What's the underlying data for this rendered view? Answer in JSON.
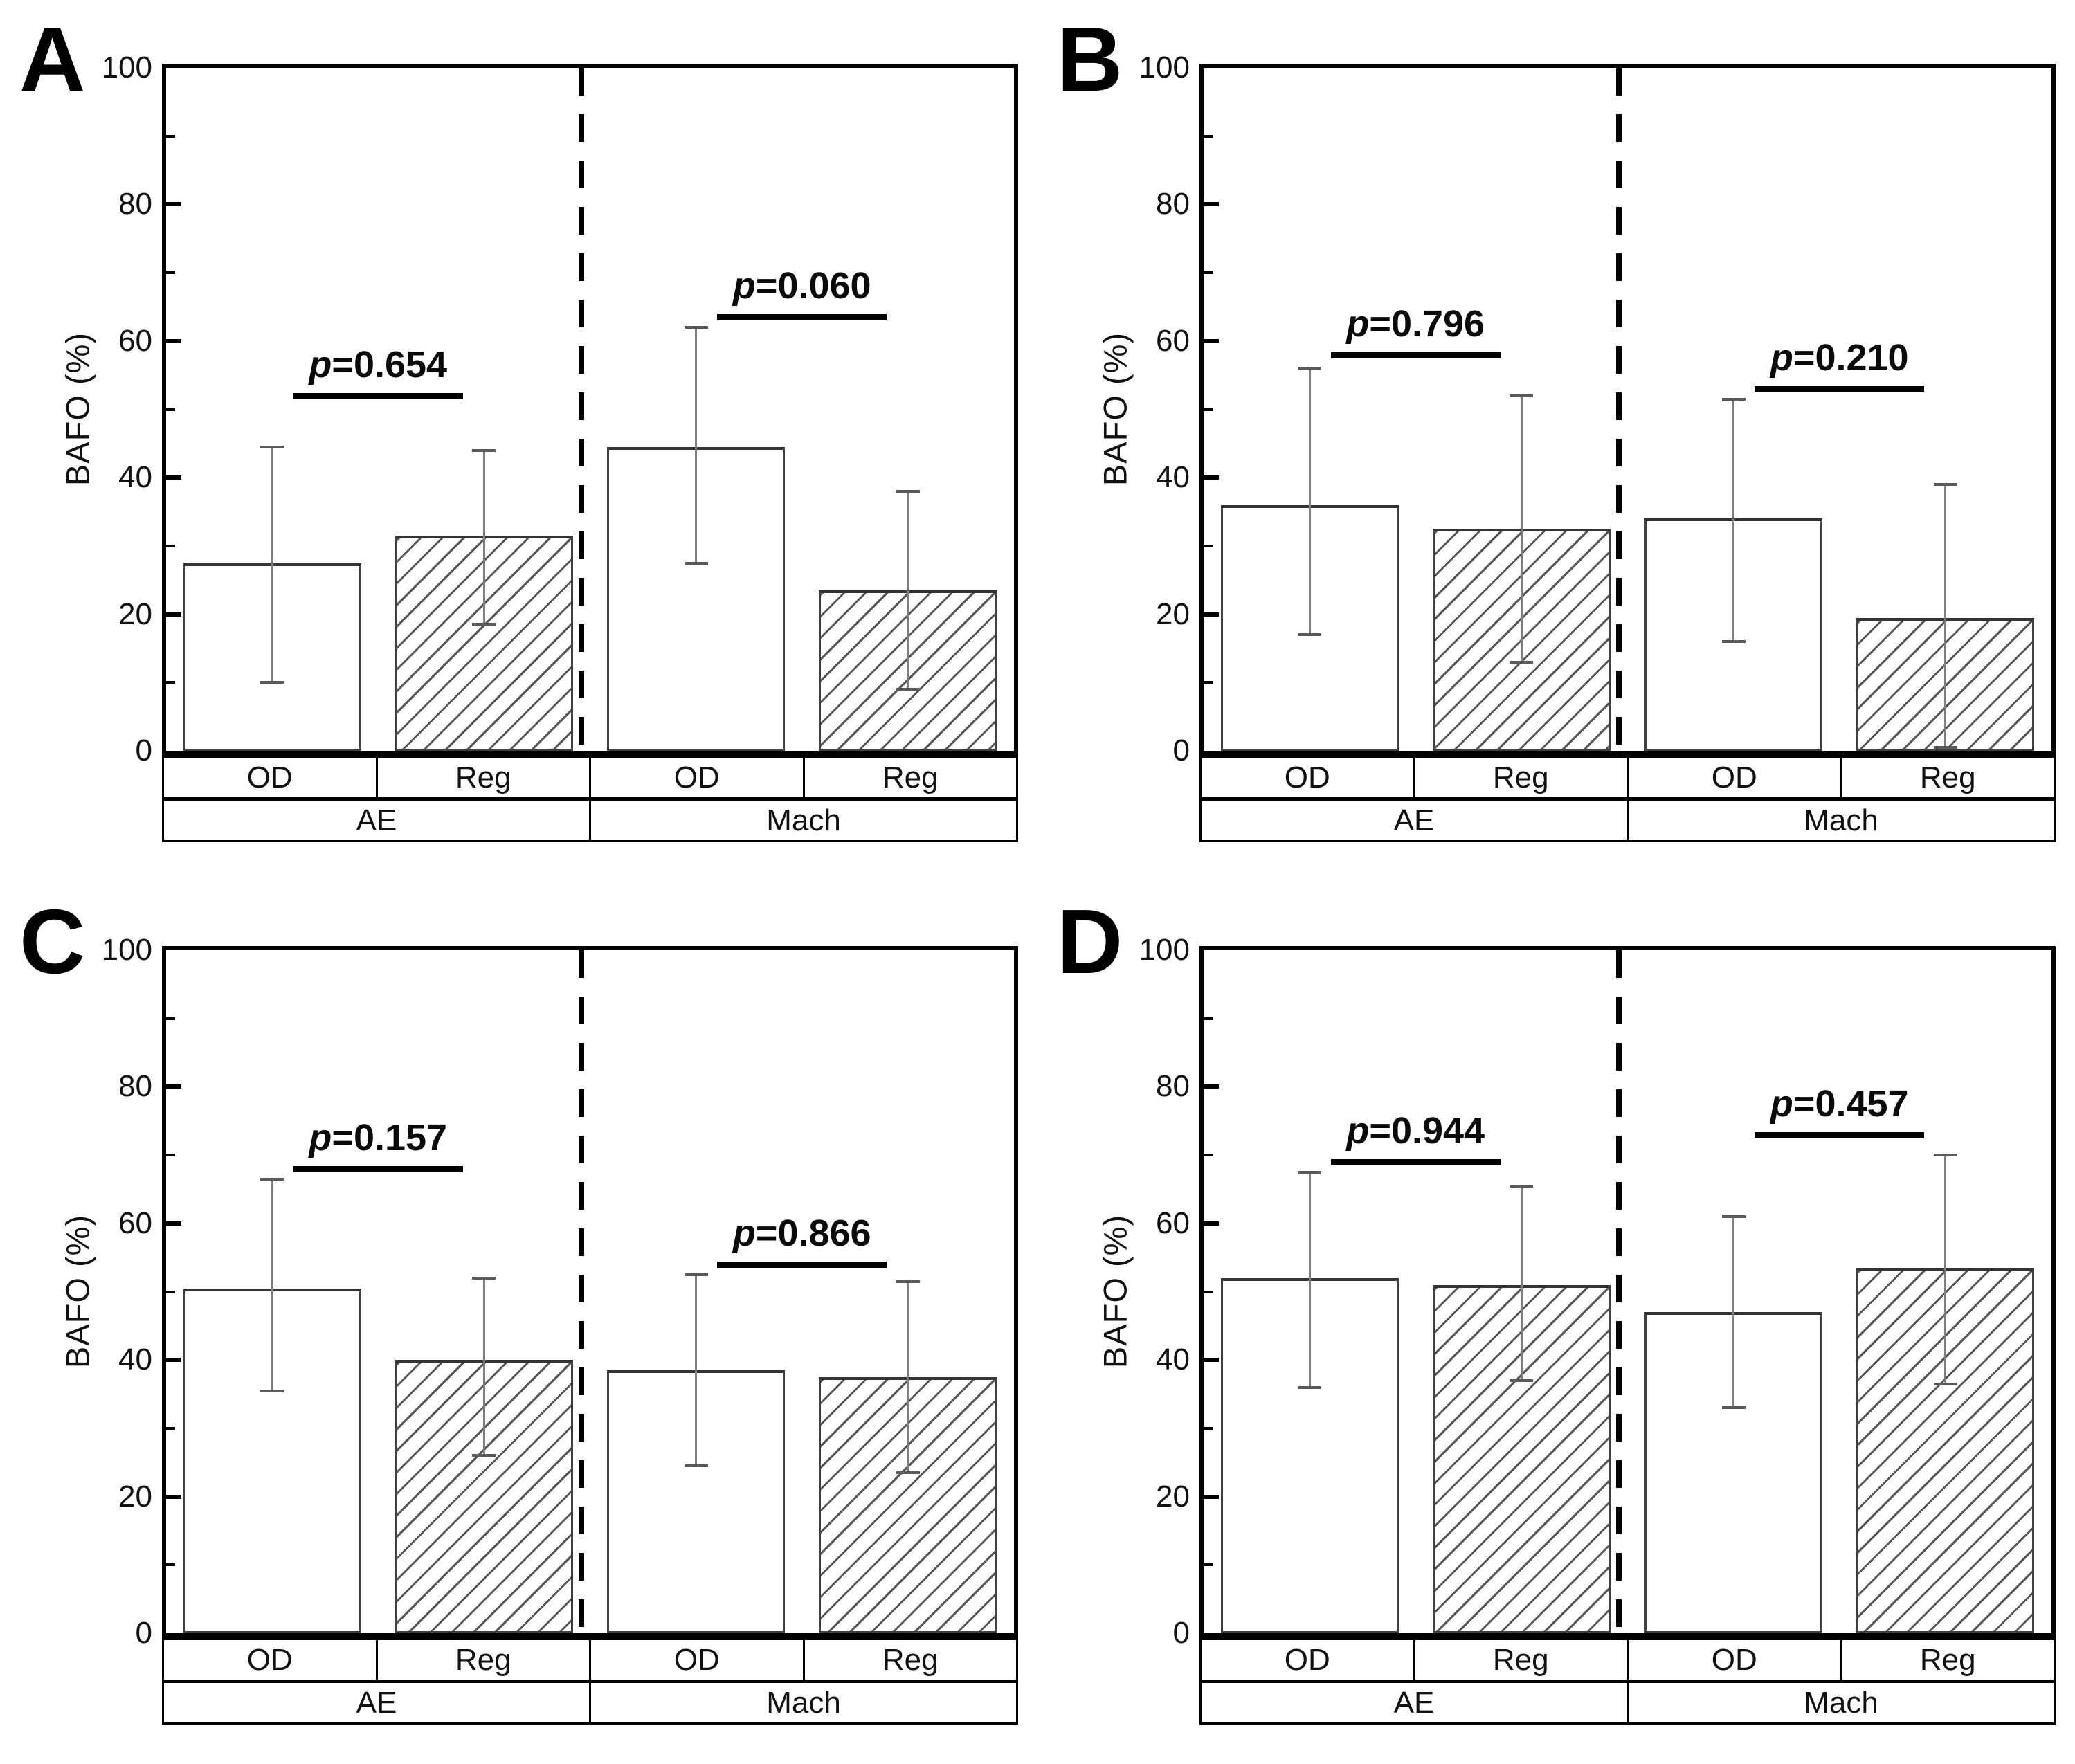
{
  "figure_title": "",
  "chart_data": [
    {
      "type": "bar",
      "panel": "A",
      "ylabel": "BAFO (%)",
      "ylim": [
        0,
        100
      ],
      "yticks_major": [
        0,
        20,
        40,
        60,
        80,
        100
      ],
      "yticks_minor": [
        10,
        30,
        50,
        70,
        90
      ],
      "grid": false,
      "group_labels": [
        "AE",
        "Mach"
      ],
      "categories": [
        "OD",
        "Reg",
        "OD",
        "Reg"
      ],
      "series": [
        {
          "group": "AE",
          "treatment": "OD",
          "value": 27.5,
          "err_low": 10,
          "err_high": 44.5,
          "hatch": false
        },
        {
          "group": "AE",
          "treatment": "Reg",
          "value": 31.5,
          "err_low": 18.5,
          "err_high": 44,
          "hatch": true
        },
        {
          "group": "Mach",
          "treatment": "OD",
          "value": 44.5,
          "err_low": 27.5,
          "err_high": 62,
          "hatch": false
        },
        {
          "group": "Mach",
          "treatment": "Reg",
          "value": 23.5,
          "err_low": 9,
          "err_high": 38,
          "hatch": true
        }
      ],
      "p_values": [
        {
          "label": "p=0.654",
          "pair": "AE",
          "line_y": 52
        },
        {
          "label": "p=0.060",
          "pair": "Mach",
          "line_y": 63.5
        }
      ]
    },
    {
      "type": "bar",
      "panel": "B",
      "ylabel": "BAFO (%)",
      "ylim": [
        0,
        100
      ],
      "yticks_major": [
        0,
        20,
        40,
        60,
        80,
        100
      ],
      "yticks_minor": [
        10,
        30,
        50,
        70,
        90
      ],
      "grid": false,
      "group_labels": [
        "AE",
        "Mach"
      ],
      "categories": [
        "OD",
        "Reg",
        "OD",
        "Reg"
      ],
      "series": [
        {
          "group": "AE",
          "treatment": "OD",
          "value": 36,
          "err_low": 17,
          "err_high": 56,
          "hatch": false
        },
        {
          "group": "AE",
          "treatment": "Reg",
          "value": 32.5,
          "err_low": 13,
          "err_high": 52,
          "hatch": true
        },
        {
          "group": "Mach",
          "treatment": "OD",
          "value": 34,
          "err_low": 16,
          "err_high": 51.5,
          "hatch": false
        },
        {
          "group": "Mach",
          "treatment": "Reg",
          "value": 19.5,
          "err_low": 0.5,
          "err_high": 39,
          "hatch": true
        }
      ],
      "p_values": [
        {
          "label": "p=0.796",
          "pair": "AE",
          "line_y": 58
        },
        {
          "label": "p=0.210",
          "pair": "Mach",
          "line_y": 53
        }
      ]
    },
    {
      "type": "bar",
      "panel": "C",
      "ylabel": "BAFO (%)",
      "ylim": [
        0,
        100
      ],
      "yticks_major": [
        0,
        20,
        40,
        60,
        80,
        100
      ],
      "yticks_minor": [
        10,
        30,
        50,
        70,
        90
      ],
      "grid": false,
      "group_labels": [
        "AE",
        "Mach"
      ],
      "categories": [
        "OD",
        "Reg",
        "OD",
        "Reg"
      ],
      "series": [
        {
          "group": "AE",
          "treatment": "OD",
          "value": 50.5,
          "err_low": 35.5,
          "err_high": 66.5,
          "hatch": false
        },
        {
          "group": "AE",
          "treatment": "Reg",
          "value": 40,
          "err_low": 26,
          "err_high": 52,
          "hatch": true
        },
        {
          "group": "Mach",
          "treatment": "OD",
          "value": 38.5,
          "err_low": 24.5,
          "err_high": 52.5,
          "hatch": false
        },
        {
          "group": "Mach",
          "treatment": "Reg",
          "value": 37.5,
          "err_low": 23.5,
          "err_high": 51.5,
          "hatch": true
        }
      ],
      "p_values": [
        {
          "label": "p=0.157",
          "pair": "AE",
          "line_y": 68
        },
        {
          "label": "p=0.866",
          "pair": "Mach",
          "line_y": 54
        }
      ]
    },
    {
      "type": "bar",
      "panel": "D",
      "ylabel": "BAFO (%)",
      "ylim": [
        0,
        100
      ],
      "yticks_major": [
        0,
        20,
        40,
        60,
        80,
        100
      ],
      "yticks_minor": [
        10,
        30,
        50,
        70,
        90
      ],
      "grid": false,
      "group_labels": [
        "AE",
        "Mach"
      ],
      "categories": [
        "OD",
        "Reg",
        "OD",
        "Reg"
      ],
      "series": [
        {
          "group": "AE",
          "treatment": "OD",
          "value": 52,
          "err_low": 36,
          "err_high": 67.5,
          "hatch": false
        },
        {
          "group": "AE",
          "treatment": "Reg",
          "value": 51,
          "err_low": 37,
          "err_high": 65.5,
          "hatch": true
        },
        {
          "group": "Mach",
          "treatment": "OD",
          "value": 47,
          "err_low": 33,
          "err_high": 61,
          "hatch": false
        },
        {
          "group": "Mach",
          "treatment": "Reg",
          "value": 53.5,
          "err_low": 36.5,
          "err_high": 70,
          "hatch": true
        }
      ],
      "p_values": [
        {
          "label": "p=0.944",
          "pair": "AE",
          "line_y": 69
        },
        {
          "label": "p=0.457",
          "pair": "Mach",
          "line_y": 72.9
        }
      ]
    }
  ]
}
